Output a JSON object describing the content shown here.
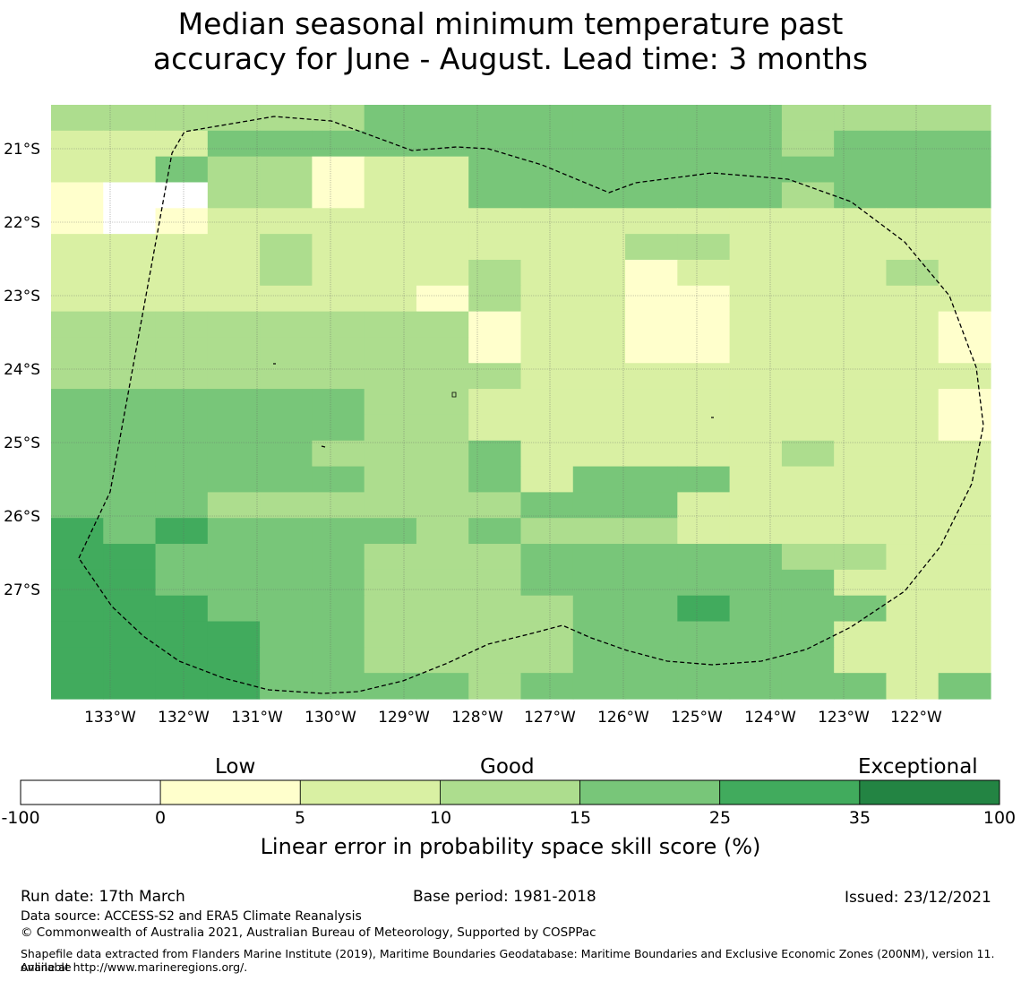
{
  "title": {
    "line1": "Median seasonal minimum temperature past",
    "line2": "accuracy for June - August. Lead time: 3 months"
  },
  "map": {
    "lat_ticks": [
      "21°S",
      "22°S",
      "23°S",
      "24°S",
      "25°S",
      "26°S",
      "27°S"
    ],
    "lon_ticks": [
      "133°W",
      "132°W",
      "131°W",
      "130°W",
      "129°W",
      "128°W",
      "127°W",
      "126°W",
      "125°W",
      "124°W",
      "123°W",
      "122°W"
    ],
    "grid_rows": [
      "333333444444443333",
      "222444444444443444",
      "224331224444444444",
      "100331224444443444",
      "101222222222222222",
      "222232222223322222",
      "222232223221222232",
      "222222213221122222",
      "333333331221122221",
      "333333331221122221",
      "333333333222222222",
      "444444332222222221",
      "444444332222222221",
      "444443334222223222",
      "444444334244422222",
      "444333333444222222",
      "545444434333222222",
      "554444333444443322",
      "554444333444444222",
      "555444333344544422",
      "555544333344444222",
      "555544333344444222",
      "555544443444444424"
    ],
    "level_colors": [
      "#ffffff",
      "#ffffcc",
      "#d9f0a3",
      "#addd8e",
      "#78c679",
      "#41ab5d",
      "#238443"
    ]
  },
  "colorbar": {
    "labels": {
      "low": "Low",
      "good": "Good",
      "exceptional": "Exceptional"
    },
    "ticks": [
      "-100",
      "0",
      "5",
      "10",
      "15",
      "25",
      "35",
      "100"
    ],
    "colors": [
      "#ffffff",
      "#ffffcc",
      "#d9f0a3",
      "#addd8e",
      "#78c679",
      "#41ab5d",
      "#238443"
    ],
    "title": "Linear error in probability space skill score (%)"
  },
  "footer": {
    "run_date": "Run date: 17th March",
    "base_period": "Base period: 1981-2018",
    "issued": "Issued: 23/12/2021",
    "data_source": "Data source: ACCESS-S2 and ERA5 Climate Reanalysis",
    "copyright": "© Commonwealth of Australia 2021, Australian Bureau of Meteorology, Supported by COSPPac",
    "shapefile_line1": "Shapefile data extracted from Flanders Marine Institute (2019), Maritime Boundaries Geodatabase: Maritime Boundaries and Exclusive Economic Zones (200NM), version 11. Available",
    "shapefile_line2": "online at http://www.marineregions.org/."
  }
}
